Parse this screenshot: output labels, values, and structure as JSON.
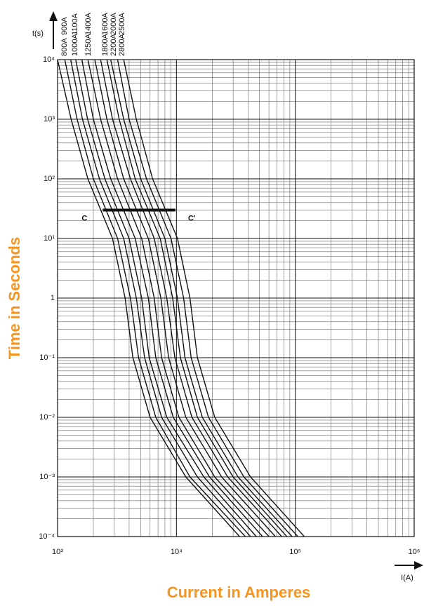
{
  "chart_data": {
    "type": "line",
    "x_label": "I(A)",
    "y_label": "t(s)",
    "x_title": "Current in Amperes",
    "y_title": "Time in Seconds",
    "log_x": true,
    "log_y": true,
    "grid": true,
    "minor_grid": true,
    "accent_color": "#f7941d",
    "xlim": [
      1000,
      1000000
    ],
    "ylim": [
      0.0001,
      10000
    ],
    "xticks": [
      {
        "value": 1000,
        "label": "10³"
      },
      {
        "value": 10000,
        "label": "10⁴"
      },
      {
        "value": 100000,
        "label": "10⁵"
      },
      {
        "value": 1000000,
        "label": "10⁶"
      }
    ],
    "yticks": [
      {
        "value": 0.0001,
        "label": "10⁻⁴"
      },
      {
        "value": 0.001,
        "label": "10⁻³"
      },
      {
        "value": 0.01,
        "label": "10⁻²"
      },
      {
        "value": 0.1,
        "label": "10⁻¹"
      },
      1,
      {
        "value": 10,
        "label": "10¹"
      },
      {
        "value": 100,
        "label": "10²"
      },
      {
        "value": 1000,
        "label": "10³"
      },
      {
        "value": 10000,
        "label": "10⁴"
      }
    ],
    "series": [
      {
        "name": "800A",
        "color": "#111111",
        "x": [
          1000,
          1300,
          1800,
          2900,
          3700,
          4300,
          6000,
          12000,
          34000
        ],
        "values": [
          10000,
          1000,
          100,
          10,
          1,
          0.1,
          0.01,
          0.001,
          0.0001
        ]
      },
      {
        "name": "900A",
        "color": "#111111",
        "x": [
          1150,
          1460,
          2000,
          3200,
          4100,
          4800,
          6700,
          13000,
          38000
        ],
        "values": [
          10000,
          1000,
          100,
          10,
          1,
          0.1,
          0.01,
          0.001,
          0.0001
        ]
      },
      {
        "name": "1000A",
        "color": "#111111",
        "x": [
          1290,
          1620,
          2250,
          3600,
          4600,
          5400,
          7500,
          15000,
          42000
        ],
        "values": [
          10000,
          1000,
          100,
          10,
          1,
          0.1,
          0.01,
          0.001,
          0.0001
        ]
      },
      {
        "name": "1100A",
        "color": "#111111",
        "x": [
          1420,
          1790,
          2500,
          4000,
          5100,
          5900,
          8300,
          17000,
          47000
        ],
        "values": [
          10000,
          1000,
          100,
          10,
          1,
          0.1,
          0.01,
          0.001,
          0.0001
        ]
      },
      {
        "name": "1250A",
        "color": "#111111",
        "x": [
          1600,
          2000,
          2800,
          4500,
          5800,
          6700,
          9400,
          19000,
          53000
        ],
        "values": [
          10000,
          1000,
          100,
          10,
          1,
          0.1,
          0.01,
          0.001,
          0.0001
        ]
      },
      {
        "name": "1400A",
        "color": "#111111",
        "x": [
          1800,
          2300,
          3200,
          5100,
          6500,
          7500,
          10500,
          21000,
          60000
        ],
        "values": [
          10000,
          1000,
          100,
          10,
          1,
          0.1,
          0.01,
          0.001,
          0.0001
        ]
      },
      {
        "name": "1600A",
        "color": "#111111",
        "x": [
          2060,
          2600,
          3600,
          5800,
          7400,
          8600,
          12000,
          24000,
          68000
        ],
        "values": [
          10000,
          1000,
          100,
          10,
          1,
          0.1,
          0.01,
          0.001,
          0.0001
        ]
      },
      {
        "name": "1800A",
        "color": "#111111",
        "x": [
          2300,
          2900,
          4100,
          6500,
          8300,
          9700,
          13500,
          27000,
          77000
        ],
        "values": [
          10000,
          1000,
          100,
          10,
          1,
          0.1,
          0.01,
          0.001,
          0.0001
        ]
      },
      {
        "name": "2000A",
        "color": "#111111",
        "x": [
          2600,
          3300,
          4500,
          7300,
          9300,
          10800,
          15000,
          30000,
          85000
        ],
        "values": [
          10000,
          1000,
          100,
          10,
          1,
          0.1,
          0.01,
          0.001,
          0.0001
        ]
      },
      {
        "name": "2200A",
        "color": "#111111",
        "x": [
          2800,
          3600,
          5000,
          8000,
          10200,
          11800,
          16500,
          33000,
          94000
        ],
        "values": [
          10000,
          1000,
          100,
          10,
          1,
          0.1,
          0.01,
          0.001,
          0.0001
        ]
      },
      {
        "name": "2500A",
        "color": "#111111",
        "x": [
          3200,
          4000,
          5600,
          9000,
          11500,
          13300,
          18600,
          37000,
          105000
        ],
        "values": [
          10000,
          1000,
          100,
          10,
          1,
          0.1,
          0.01,
          0.001,
          0.0001
        ]
      },
      {
        "name": "2800A",
        "color": "#111111",
        "x": [
          3600,
          4600,
          6300,
          10200,
          13000,
          15000,
          21000,
          42000,
          119000
        ],
        "values": [
          10000,
          1000,
          100,
          10,
          1,
          0.1,
          0.01,
          0.001,
          0.0001
        ]
      }
    ],
    "marker_line": {
      "start_label": "C",
      "end_label": "C'",
      "x": [
        2400,
        9800
      ],
      "y": 30
    }
  }
}
